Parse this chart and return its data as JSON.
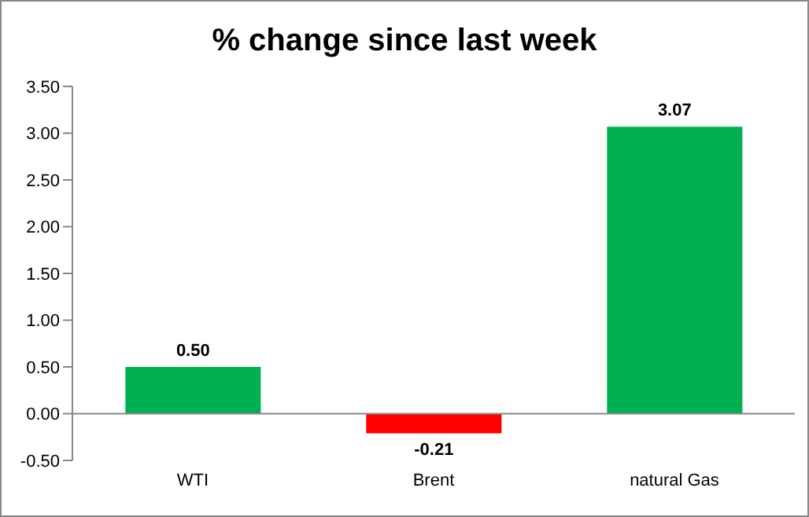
{
  "chart_data": {
    "type": "bar",
    "title": "% change since last week",
    "categories": [
      "WTI",
      "Brent",
      "natural Gas"
    ],
    "values": [
      0.5,
      -0.21,
      3.07
    ],
    "colors": [
      "#00b050",
      "#ff0000",
      "#00b050"
    ],
    "value_labels": [
      "0.50",
      "-0.21",
      "3.07"
    ],
    "ylim": [
      -0.5,
      3.5
    ],
    "yticks": [
      {
        "value": -0.5,
        "label": "-0.50"
      },
      {
        "value": 0,
        "label": "0.00"
      },
      {
        "value": 0.5,
        "label": "0.50"
      },
      {
        "value": 1,
        "label": "1.00"
      },
      {
        "value": 1.5,
        "label": "1.50"
      },
      {
        "value": 2,
        "label": "2.00"
      },
      {
        "value": 2.5,
        "label": "2.50"
      },
      {
        "value": 3,
        "label": "3.00"
      },
      {
        "value": 3.5,
        "label": "3.50"
      }
    ],
    "legend": false
  }
}
